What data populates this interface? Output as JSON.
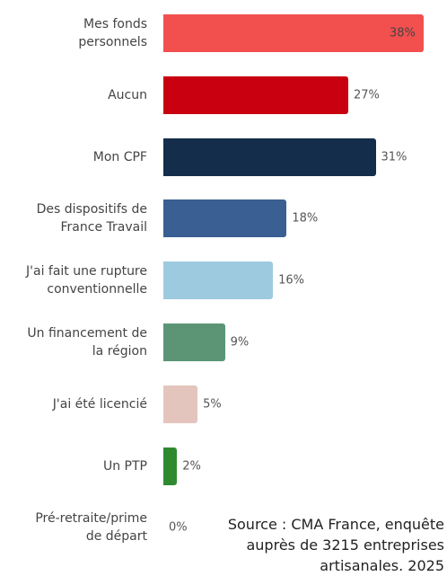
{
  "chart_data": {
    "type": "bar",
    "orientation": "horizontal",
    "categories": [
      "Mes fonds\npersonnels",
      "Aucun",
      "Mon CPF",
      "Des dispositifs de\nFrance Travail",
      "J'ai fait une rupture\nconventionnelle",
      "Un financement de\nla région",
      "J'ai été licencié",
      "Un PTP",
      "Pré-retraite/prime\nde départ"
    ],
    "values": [
      38,
      27,
      31,
      18,
      16,
      9,
      5,
      2,
      0
    ],
    "value_labels": [
      "38%",
      "27%",
      "31%",
      "18%",
      "16%",
      "9%",
      "5%",
      "2%",
      "0%"
    ],
    "colors": [
      "#f24f4f",
      "#c80010",
      "#142d4b",
      "#3a5f92",
      "#9ecae0",
      "#5b9575",
      "#e4c5bd",
      "#2f8a2f",
      "#cccccc"
    ],
    "source": "Source : CMA France, enquête auprès de 3215 entreprises artisanales. 2025"
  }
}
